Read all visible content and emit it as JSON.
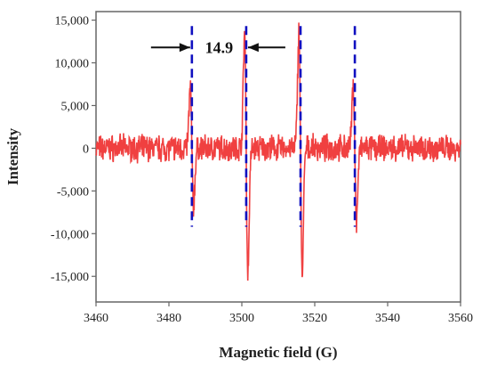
{
  "chart_data": {
    "type": "line",
    "title": "",
    "xlabel": "Magnetic field (G)",
    "ylabel": "Intensity",
    "xlim": [
      3460,
      3560
    ],
    "ylim": [
      -18000,
      16000
    ],
    "xticks": [
      3460,
      3480,
      3500,
      3520,
      3540,
      3560
    ],
    "xtick_labels": [
      "3460",
      "3480",
      "3500",
      "3520",
      "3540",
      "3560"
    ],
    "yticks": [
      15000,
      10000,
      5000,
      0,
      -5000,
      -10000,
      -15000
    ],
    "ytick_labels": [
      "15,000",
      "10,000",
      "5,000",
      "0",
      "-5,000",
      "-10,000",
      "-15,000"
    ],
    "grid": false,
    "colors": {
      "signal": "#f04040",
      "markers": "#1010c0",
      "axis": "#666666"
    },
    "series": [
      {
        "noise_amplitude": 1200,
        "peaks": [
          {
            "center": 3486.3,
            "max": 7000,
            "min": -7000
          },
          {
            "center": 3501.2,
            "max": 13600,
            "min": -14800
          },
          {
            "center": 3516.1,
            "max": 13800,
            "min": -14800
          },
          {
            "center": 3531.0,
            "max": 7200,
            "min": -8600
          }
        ]
      }
    ],
    "vlines": [
      3486.3,
      3501.2,
      3516.1,
      3531.0
    ],
    "annotation": {
      "text": "14.9",
      "from": 3486.3,
      "to": 3501.2,
      "y": 11800
    }
  }
}
